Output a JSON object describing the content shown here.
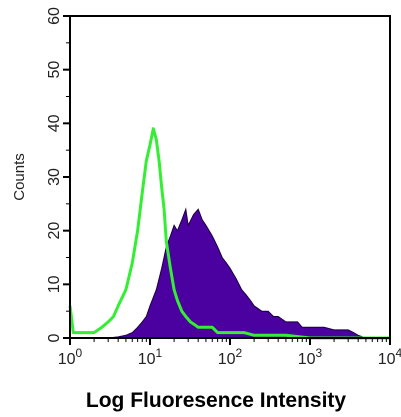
{
  "chart_data": {
    "type": "area",
    "title": "",
    "xlabel": "Log Fluoresence Intensity",
    "ylabel": "Counts",
    "x_scale": "log",
    "xlim": [
      1,
      10000
    ],
    "ylim": [
      0,
      60
    ],
    "x_ticks": [
      {
        "value": 1,
        "base": "10",
        "exp": "0"
      },
      {
        "value": 10,
        "base": "10",
        "exp": "1"
      },
      {
        "value": 100,
        "base": "10",
        "exp": "2"
      },
      {
        "value": 1000,
        "base": "10",
        "exp": "3"
      },
      {
        "value": 10000,
        "base": "10",
        "exp": "4"
      }
    ],
    "y_ticks": [
      "0",
      "10",
      "20",
      "30",
      "40",
      "50",
      "60"
    ],
    "grid": false,
    "legend": "none",
    "series": [
      {
        "kind": "filled",
        "color": "#4b00a0",
        "x": [
          1,
          2,
          3,
          4,
          5,
          6,
          7,
          8,
          9,
          10,
          12,
          14,
          16,
          18,
          20,
          22,
          25,
          28,
          30,
          35,
          40,
          45,
          50,
          60,
          70,
          80,
          90,
          100,
          120,
          140,
          160,
          180,
          200,
          250,
          300,
          350,
          400,
          500,
          600,
          700,
          800,
          1000,
          1200,
          1500,
          2000,
          2500,
          3000,
          3500,
          4000,
          5000,
          10000
        ],
        "y": [
          0,
          0,
          0,
          0.2,
          0.5,
          1,
          2,
          3,
          4,
          6,
          9,
          13,
          17,
          19,
          21,
          20,
          22,
          24,
          21,
          23,
          24,
          22,
          21,
          19,
          17,
          15,
          14,
          13,
          11,
          9,
          8,
          7,
          6,
          5,
          5,
          4,
          4,
          3,
          3,
          3,
          2,
          2,
          2,
          2,
          1.5,
          1.5,
          1.5,
          1,
          0.5,
          0,
          0
        ]
      },
      {
        "kind": "outline",
        "color": "#33ee33",
        "x": [
          1,
          1.1,
          1.3,
          1.6,
          2,
          2.5,
          3,
          3.5,
          4,
          5,
          6,
          7,
          8,
          9,
          10,
          11,
          12,
          13,
          14,
          15,
          16,
          18,
          20,
          22,
          25,
          28,
          32,
          36,
          40,
          50,
          60,
          70,
          80,
          100,
          150,
          200,
          300,
          500,
          1000,
          2000,
          10000
        ],
        "y": [
          6,
          1,
          1,
          1,
          1,
          2,
          3,
          4,
          6,
          9,
          14,
          20,
          27,
          33,
          36,
          39,
          37,
          33,
          28,
          24,
          18,
          13,
          9,
          7,
          5,
          4,
          3,
          2.5,
          2,
          2,
          2,
          1,
          1,
          1,
          1,
          0.5,
          0.5,
          0.5,
          0,
          0,
          0
        ]
      }
    ]
  }
}
